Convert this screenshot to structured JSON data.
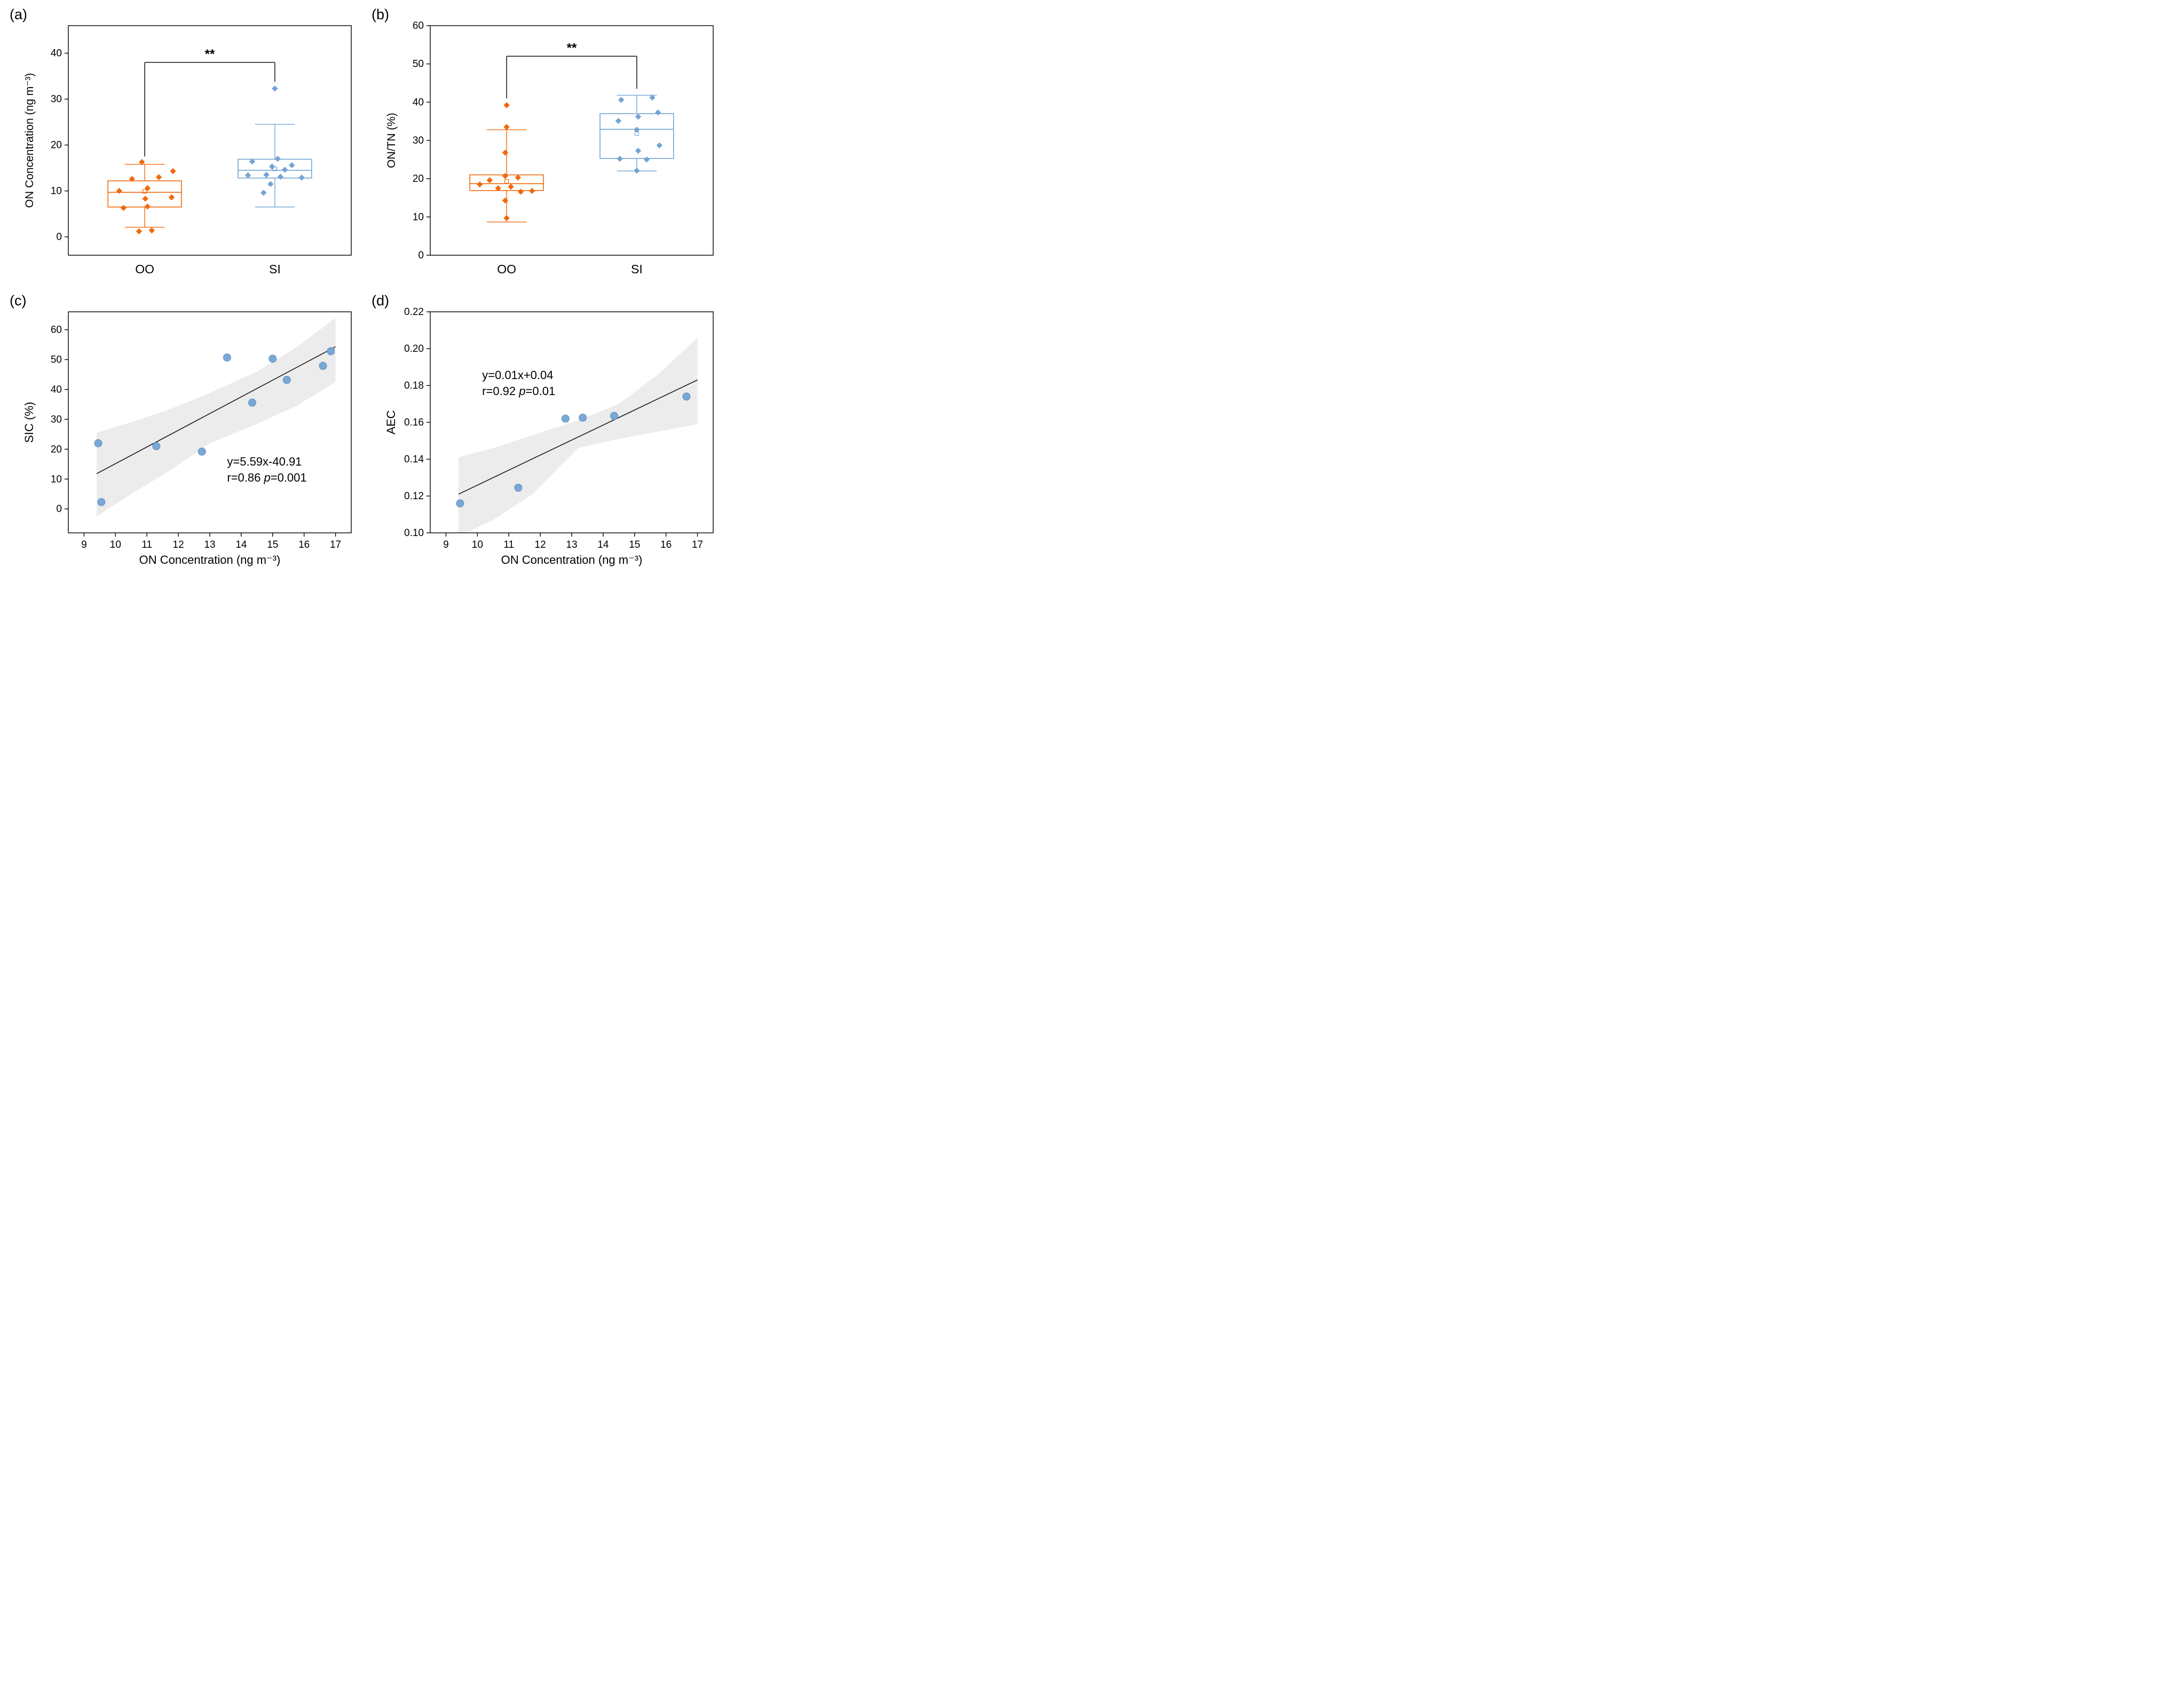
{
  "figure": {
    "background": "#ffffff",
    "orange": "#F2690D",
    "blue": "#74A4D4",
    "band_color": "#DCDCDC",
    "trend_color": "#1A1A1A"
  },
  "chart_data": [
    {
      "panel_label": "(a)",
      "type": "box",
      "ylabel": "ON Concentration (ng m⁻³)",
      "ylim": [
        -4,
        46
      ],
      "yticks": [
        0,
        10,
        20,
        30,
        40
      ],
      "ytick_labels": [
        "0",
        "10",
        "20",
        "30",
        "40"
      ],
      "categories": [
        "OO",
        "SI"
      ],
      "groups": [
        {
          "name": "OO",
          "color": "#F2690D",
          "center": 0.27,
          "box": {
            "q1": 6.5,
            "median": 9.7,
            "q3": 12.2,
            "whisker_low": 2.1,
            "whisker_high": 15.8,
            "mean": 9.9
          },
          "points": [
            [
              -0.01,
              16.3
            ],
            [
              0.1,
              14.3
            ],
            [
              -0.045,
              12.6
            ],
            [
              0.05,
              13.0
            ],
            [
              -0.09,
              10.0
            ],
            [
              0.01,
              10.6
            ],
            [
              0.002,
              8.3
            ],
            [
              0.095,
              8.6
            ],
            [
              -0.075,
              6.3
            ],
            [
              0.01,
              6.6
            ],
            [
              -0.02,
              1.2
            ],
            [
              0.025,
              1.4
            ]
          ]
        },
        {
          "name": "SI",
          "color": "#74A4D4",
          "center": 0.73,
          "box": {
            "q1": 12.8,
            "median": 14.5,
            "q3": 16.9,
            "whisker_low": 6.5,
            "whisker_high": 24.5,
            "mean": 14.8
          },
          "points": [
            [
              0.0,
              32.3
            ],
            [
              0.01,
              17.0
            ],
            [
              -0.08,
              16.4
            ],
            [
              0.06,
              15.6
            ],
            [
              -0.01,
              15.3
            ],
            [
              0.035,
              14.6
            ],
            [
              -0.095,
              13.4
            ],
            [
              -0.03,
              13.5
            ],
            [
              0.02,
              13.1
            ],
            [
              0.095,
              12.9
            ],
            [
              -0.015,
              11.5
            ],
            [
              -0.04,
              9.6
            ]
          ]
        }
      ],
      "significance": {
        "label": "**",
        "y": 38,
        "drop_left": 17.5,
        "drop_right": 33.8
      }
    },
    {
      "panel_label": "(b)",
      "type": "box",
      "ylabel": "ON/TN (%)",
      "ylim": [
        0,
        60
      ],
      "yticks": [
        0,
        10,
        20,
        30,
        40,
        50,
        60
      ],
      "ytick_labels": [
        "0",
        "10",
        "20",
        "30",
        "40",
        "50",
        "60"
      ],
      "categories": [
        "OO",
        "SI"
      ],
      "groups": [
        {
          "name": "OO",
          "color": "#F2690D",
          "center": 0.27,
          "box": {
            "q1": 16.9,
            "median": 18.7,
            "q3": 21.0,
            "whisker_low": 8.7,
            "whisker_high": 32.8,
            "mean": 19.3
          },
          "points": [
            [
              0.0,
              39.2
            ],
            [
              0.0,
              33.5
            ],
            [
              -0.005,
              26.8
            ],
            [
              -0.005,
              20.7
            ],
            [
              0.04,
              20.3
            ],
            [
              -0.06,
              19.6
            ],
            [
              -0.095,
              18.5
            ],
            [
              0.015,
              17.9
            ],
            [
              -0.03,
              17.5
            ],
            [
              0.05,
              16.6
            ],
            [
              0.09,
              16.8
            ],
            [
              -0.005,
              14.3
            ],
            [
              0.0,
              9.7
            ]
          ]
        },
        {
          "name": "SI",
          "color": "#74A4D4",
          "center": 0.73,
          "box": {
            "q1": 25.3,
            "median": 32.9,
            "q3": 37.0,
            "whisker_low": 22.0,
            "whisker_high": 41.8,
            "mean": 31.8
          },
          "points": [
            [
              0.055,
              41.2
            ],
            [
              -0.055,
              40.6
            ],
            [
              0.075,
              37.3
            ],
            [
              0.005,
              36.2
            ],
            [
              -0.065,
              35.1
            ],
            [
              0.0,
              32.8
            ],
            [
              0.08,
              28.7
            ],
            [
              0.005,
              27.3
            ],
            [
              -0.06,
              25.2
            ],
            [
              0.035,
              25.0
            ],
            [
              0.0,
              22.1
            ]
          ]
        }
      ],
      "significance": {
        "label": "**",
        "y": 52,
        "drop_left": 41.0,
        "drop_right": 43.5
      }
    },
    {
      "panel_label": "(c)",
      "type": "scatter",
      "xlabel": "ON Concentration (ng m⁻³)",
      "ylabel": "SIC (%)",
      "xlim": [
        8.5,
        17.5
      ],
      "xticks": [
        9,
        10,
        11,
        12,
        13,
        14,
        15,
        16,
        17
      ],
      "xtick_labels": [
        "9",
        "10",
        "11",
        "12",
        "13",
        "14",
        "15",
        "16",
        "17"
      ],
      "ylim": [
        -8,
        66
      ],
      "yticks": [
        0,
        10,
        20,
        30,
        40,
        50,
        60
      ],
      "ytick_labels": [
        "0",
        "10",
        "20",
        "30",
        "40",
        "50",
        "60"
      ],
      "point_color": "#74A4D4",
      "points": [
        [
          9.45,
          22.0
        ],
        [
          9.55,
          2.3
        ],
        [
          11.3,
          21.0
        ],
        [
          12.75,
          19.2
        ],
        [
          13.55,
          50.7
        ],
        [
          14.35,
          35.6
        ],
        [
          15.0,
          50.3
        ],
        [
          15.45,
          43.2
        ],
        [
          16.6,
          47.9
        ],
        [
          16.85,
          52.8
        ]
      ],
      "trend": {
        "x": [
          9.4,
          17.0
        ],
        "y": [
          11.8,
          54.3
        ]
      },
      "band": {
        "x": [
          9.4,
          10.5,
          11.75,
          13.0,
          14.5,
          15.75,
          17.0
        ],
        "upper": [
          25.5,
          29.0,
          33.5,
          38.8,
          46.0,
          54.0,
          64.0
        ],
        "lower": [
          -2.5,
          5.0,
          13.0,
          22.0,
          28.5,
          34.5,
          42.5
        ]
      },
      "annotation": {
        "lines": [
          "y=5.59x-40.91",
          "r=0.86 p=0.001"
        ],
        "x": 13.55,
        "y": 14.5
      }
    },
    {
      "panel_label": "(d)",
      "type": "scatter",
      "xlabel": "ON Concentration (ng m⁻³)",
      "ylabel": "AEC",
      "xlim": [
        8.5,
        17.5
      ],
      "xticks": [
        9,
        10,
        11,
        12,
        13,
        14,
        15,
        16,
        17
      ],
      "xtick_labels": [
        "9",
        "10",
        "11",
        "12",
        "13",
        "14",
        "15",
        "16",
        "17"
      ],
      "ylim": [
        0.1,
        0.22
      ],
      "yticks": [
        0.1,
        0.12,
        0.14,
        0.16,
        0.18,
        0.2,
        0.22
      ],
      "ytick_labels": [
        "0.10",
        "0.12",
        "0.14",
        "0.16",
        "0.18",
        "0.20",
        "0.22"
      ],
      "point_color": "#74A4D4",
      "points": [
        [
          9.45,
          0.116
        ],
        [
          11.3,
          0.1245
        ],
        [
          12.8,
          0.162
        ],
        [
          13.35,
          0.1625
        ],
        [
          14.35,
          0.1635
        ],
        [
          16.65,
          0.174
        ]
      ],
      "trend": {
        "x": [
          9.4,
          17.0
        ],
        "y": [
          0.121,
          0.183
        ]
      },
      "band": {
        "x": [
          9.4,
          10.5,
          11.75,
          13.2,
          14.5,
          15.75,
          17.0
        ],
        "upper": [
          0.141,
          0.146,
          0.153,
          0.161,
          0.17,
          0.186,
          0.206
        ],
        "lower": [
          0.098,
          0.107,
          0.121,
          0.146,
          0.151,
          0.155,
          0.159
        ]
      },
      "annotation": {
        "lines": [
          "y=0.01x+0.04",
          "r=0.92 p=0.01"
        ],
        "x": 10.15,
        "y": 0.1835
      }
    }
  ]
}
